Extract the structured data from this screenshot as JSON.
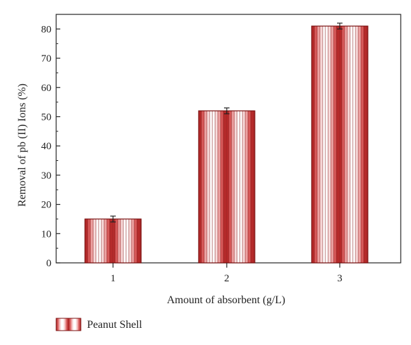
{
  "chart_data": {
    "type": "bar",
    "categories": [
      "1",
      "2",
      "3"
    ],
    "series": [
      {
        "name": "Peanut Shell",
        "values": [
          15,
          52,
          81
        ],
        "errors": [
          1,
          1,
          1
        ]
      }
    ],
    "xlabel": "Amount of absorbent (g/L)",
    "ylabel": "Removal of pb (II) Ions (%)",
    "ylim": [
      0,
      85
    ],
    "yticks": [
      0,
      10,
      20,
      30,
      40,
      50,
      60,
      70,
      80
    ],
    "grid": false,
    "legend_position": "bottom-left",
    "bar_pattern_colors": [
      "#b52a2a",
      "#d85a5a",
      "#eea3a3",
      "#f9dcdc",
      "#ffffff"
    ],
    "bar_outline_color": "#7a1010"
  }
}
